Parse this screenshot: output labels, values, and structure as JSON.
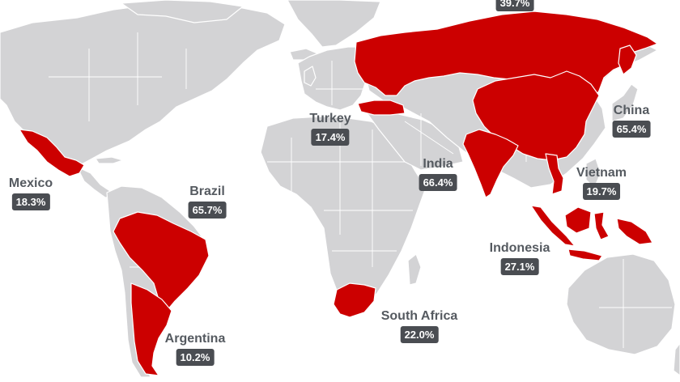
{
  "colors": {
    "land": "#d3d3d5",
    "highlight": "#cc0000",
    "label_text": "#555a60",
    "value_badge": "#4a4d52"
  },
  "top_cut_value": "39.7%",
  "countries": {
    "mexico": {
      "name": "Mexico",
      "value": "18.3%"
    },
    "brazil": {
      "name": "Brazil",
      "value": "65.7%"
    },
    "argentina": {
      "name": "Argentina",
      "value": "10.2%"
    },
    "turkey": {
      "name": "Turkey",
      "value": "17.4%"
    },
    "india": {
      "name": "India",
      "value": "66.4%"
    },
    "china": {
      "name": "China",
      "value": "65.4%"
    },
    "vietnam": {
      "name": "Vietnam",
      "value": "19.7%"
    },
    "indonesia": {
      "name": "Indonesia",
      "value": "27.1%"
    },
    "south_africa": {
      "name": "South Africa",
      "value": "22.0%"
    }
  }
}
